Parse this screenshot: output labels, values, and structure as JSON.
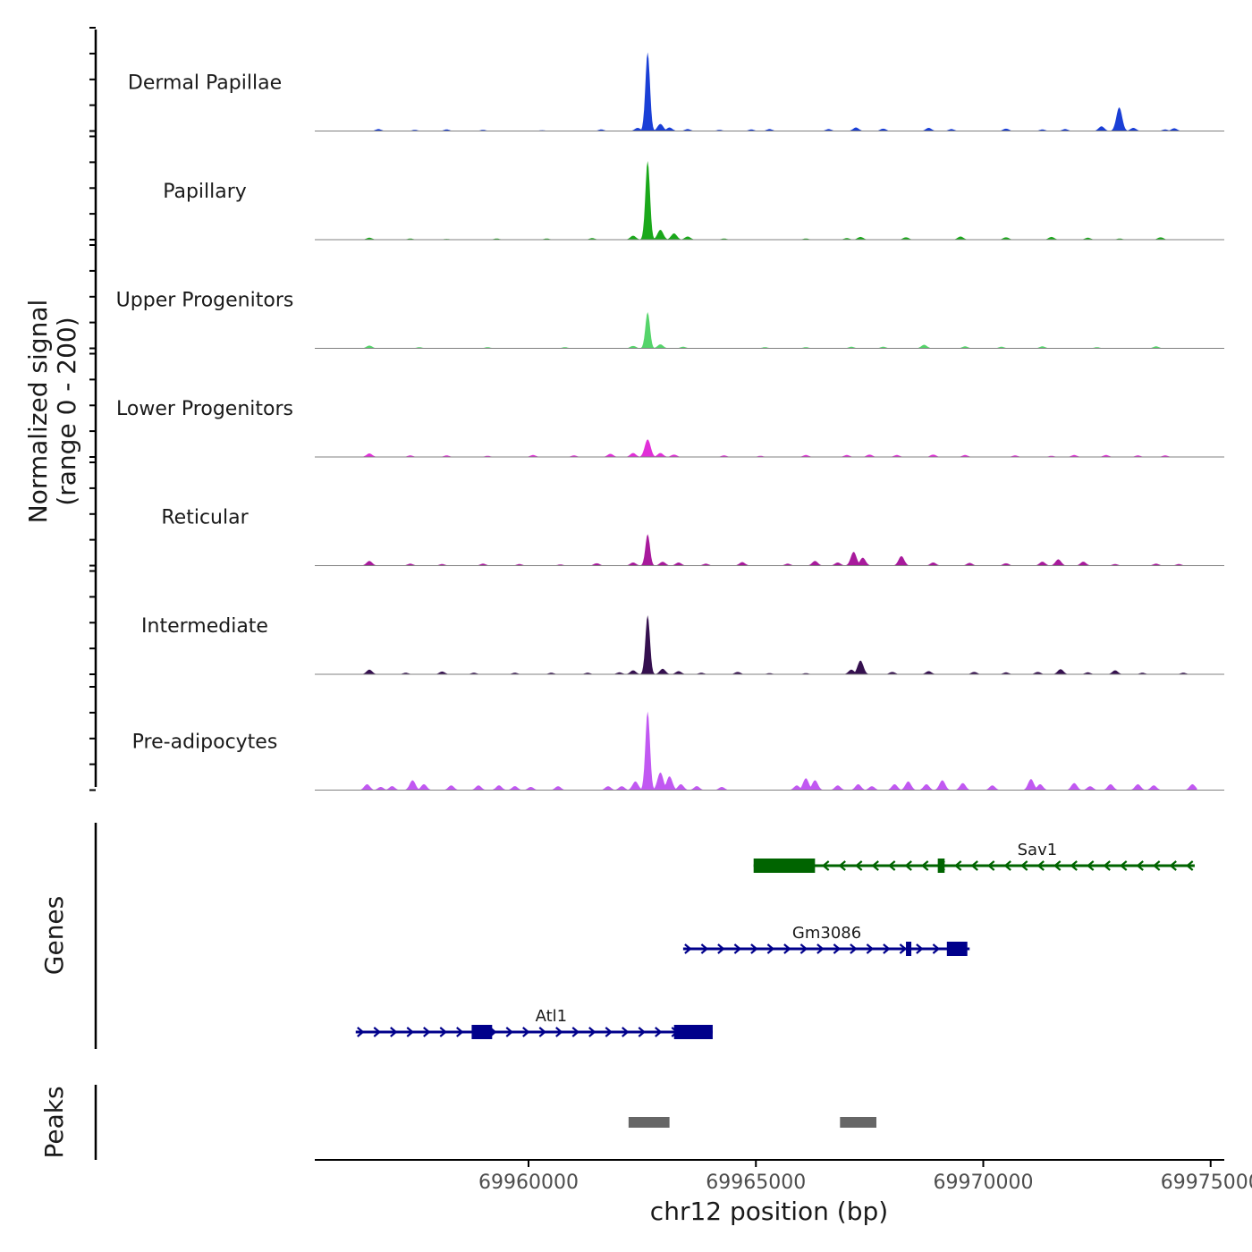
{
  "chart_data": {
    "type": "area",
    "title": "",
    "ylabel_line1": "Normalized signal",
    "ylabel_line2": "(range 0 - 200)",
    "xlabel": "chr12 position (bp)",
    "xlim": [
      69955300,
      69975300
    ],
    "ylim": [
      0,
      200
    ],
    "x_ticks": [
      69960000,
      69965000,
      69970000,
      69975000
    ],
    "x_tick_labels": [
      "69960000",
      "69965000",
      "69970000",
      "69975000"
    ],
    "tracks": [
      {
        "name": "Dermal Papillae",
        "color": "#1a3fd6",
        "peaks": [
          [
            69956700,
            5
          ],
          [
            69957500,
            3
          ],
          [
            69958200,
            4
          ],
          [
            69959000,
            3
          ],
          [
            69960300,
            2
          ],
          [
            69961600,
            4
          ],
          [
            69962400,
            8
          ],
          [
            69962620,
            200
          ],
          [
            69962900,
            18
          ],
          [
            69963100,
            9
          ],
          [
            69963500,
            5
          ],
          [
            69964200,
            3
          ],
          [
            69964900,
            4
          ],
          [
            69965300,
            5
          ],
          [
            69966600,
            5
          ],
          [
            69967200,
            9
          ],
          [
            69967800,
            6
          ],
          [
            69968800,
            8
          ],
          [
            69969300,
            5
          ],
          [
            69970500,
            6
          ],
          [
            69971300,
            4
          ],
          [
            69971800,
            5
          ],
          [
            69972600,
            12
          ],
          [
            69972990,
            60
          ],
          [
            69973300,
            8
          ],
          [
            69974000,
            4
          ],
          [
            69974200,
            7
          ]
        ]
      },
      {
        "name": "Papillary",
        "color": "#1aa81a",
        "peaks": [
          [
            69956500,
            5
          ],
          [
            69957400,
            3
          ],
          [
            69958200,
            2
          ],
          [
            69959300,
            3
          ],
          [
            69960400,
            3
          ],
          [
            69961400,
            4
          ],
          [
            69962300,
            10
          ],
          [
            69962620,
            200
          ],
          [
            69962900,
            25
          ],
          [
            69963200,
            16
          ],
          [
            69963500,
            8
          ],
          [
            69964300,
            3
          ],
          [
            69966100,
            3
          ],
          [
            69967000,
            4
          ],
          [
            69967300,
            7
          ],
          [
            69968300,
            6
          ],
          [
            69969500,
            8
          ],
          [
            69970500,
            6
          ],
          [
            69971500,
            7
          ],
          [
            69972300,
            5
          ],
          [
            69973000,
            3
          ],
          [
            69973900,
            6
          ]
        ]
      },
      {
        "name": "Upper Progenitors",
        "color": "#55d46a",
        "peaks": [
          [
            69956500,
            7
          ],
          [
            69957600,
            3
          ],
          [
            69959100,
            3
          ],
          [
            69960800,
            3
          ],
          [
            69962300,
            6
          ],
          [
            69962620,
            92
          ],
          [
            69962900,
            10
          ],
          [
            69963400,
            4
          ],
          [
            69965200,
            3
          ],
          [
            69966100,
            3
          ],
          [
            69967100,
            4
          ],
          [
            69967800,
            4
          ],
          [
            69968700,
            9
          ],
          [
            69969600,
            5
          ],
          [
            69970400,
            4
          ],
          [
            69971300,
            5
          ],
          [
            69972500,
            3
          ],
          [
            69973800,
            5
          ]
        ]
      },
      {
        "name": "Lower Progenitors",
        "color": "#e12fd8",
        "peaks": [
          [
            69956500,
            9
          ],
          [
            69957400,
            4
          ],
          [
            69958200,
            4
          ],
          [
            69959100,
            3
          ],
          [
            69960100,
            5
          ],
          [
            69961000,
            4
          ],
          [
            69961800,
            8
          ],
          [
            69962300,
            10
          ],
          [
            69962620,
            45
          ],
          [
            69962900,
            10
          ],
          [
            69963200,
            6
          ],
          [
            69964300,
            4
          ],
          [
            69965100,
            3
          ],
          [
            69966100,
            5
          ],
          [
            69967000,
            5
          ],
          [
            69967500,
            6
          ],
          [
            69968100,
            5
          ],
          [
            69968900,
            6
          ],
          [
            69969600,
            5
          ],
          [
            69970700,
            4
          ],
          [
            69971500,
            3
          ],
          [
            69972000,
            5
          ],
          [
            69972700,
            5
          ],
          [
            69973400,
            4
          ],
          [
            69974000,
            4
          ]
        ]
      },
      {
        "name": "Reticular",
        "color": "#a81a9c",
        "peaks": [
          [
            69956500,
            12
          ],
          [
            69957400,
            5
          ],
          [
            69958100,
            4
          ],
          [
            69959000,
            5
          ],
          [
            69959800,
            4
          ],
          [
            69960700,
            3
          ],
          [
            69961500,
            6
          ],
          [
            69962300,
            8
          ],
          [
            69962620,
            80
          ],
          [
            69962950,
            10
          ],
          [
            69963300,
            8
          ],
          [
            69963900,
            5
          ],
          [
            69964700,
            9
          ],
          [
            69965700,
            5
          ],
          [
            69966300,
            12
          ],
          [
            69966800,
            8
          ],
          [
            69967150,
            35
          ],
          [
            69967350,
            20
          ],
          [
            69968200,
            24
          ],
          [
            69968900,
            8
          ],
          [
            69969700,
            7
          ],
          [
            69970500,
            6
          ],
          [
            69971300,
            10
          ],
          [
            69971650,
            16
          ],
          [
            69972200,
            10
          ],
          [
            69972900,
            4
          ],
          [
            69973800,
            5
          ],
          [
            69974300,
            4
          ]
        ]
      },
      {
        "name": "Intermediate",
        "color": "#35104f",
        "peaks": [
          [
            69956500,
            12
          ],
          [
            69957300,
            4
          ],
          [
            69958100,
            7
          ],
          [
            69958800,
            4
          ],
          [
            69959700,
            4
          ],
          [
            69960500,
            4
          ],
          [
            69961300,
            4
          ],
          [
            69962000,
            5
          ],
          [
            69962300,
            10
          ],
          [
            69962620,
            150
          ],
          [
            69962950,
            14
          ],
          [
            69963300,
            8
          ],
          [
            69963800,
            4
          ],
          [
            69964600,
            6
          ],
          [
            69965300,
            3
          ],
          [
            69966100,
            3
          ],
          [
            69967100,
            12
          ],
          [
            69967300,
            35
          ],
          [
            69968000,
            6
          ],
          [
            69968800,
            8
          ],
          [
            69969800,
            6
          ],
          [
            69970500,
            5
          ],
          [
            69971200,
            6
          ],
          [
            69971700,
            13
          ],
          [
            69972300,
            5
          ],
          [
            69972900,
            10
          ],
          [
            69973500,
            4
          ],
          [
            69974400,
            4
          ]
        ]
      },
      {
        "name": "Pre-adipocytes",
        "color": "#c158f2",
        "peaks": [
          [
            69956450,
            15
          ],
          [
            69956750,
            8
          ],
          [
            69957000,
            10
          ],
          [
            69957450,
            25
          ],
          [
            69957700,
            15
          ],
          [
            69958300,
            12
          ],
          [
            69958900,
            12
          ],
          [
            69959350,
            12
          ],
          [
            69959700,
            10
          ],
          [
            69960050,
            8
          ],
          [
            69960650,
            10
          ],
          [
            69961750,
            10
          ],
          [
            69962050,
            10
          ],
          [
            69962350,
            22
          ],
          [
            69962620,
            200
          ],
          [
            69962900,
            45
          ],
          [
            69963100,
            35
          ],
          [
            69963350,
            15
          ],
          [
            69963700,
            10
          ],
          [
            69964250,
            8
          ],
          [
            69965900,
            12
          ],
          [
            69966100,
            30
          ],
          [
            69966300,
            25
          ],
          [
            69966800,
            12
          ],
          [
            69967250,
            15
          ],
          [
            69967550,
            10
          ],
          [
            69968050,
            15
          ],
          [
            69968350,
            22
          ],
          [
            69968750,
            15
          ],
          [
            69969100,
            25
          ],
          [
            69969550,
            18
          ],
          [
            69970200,
            12
          ],
          [
            69971050,
            28
          ],
          [
            69971250,
            15
          ],
          [
            69972000,
            18
          ],
          [
            69972350,
            10
          ],
          [
            69972800,
            15
          ],
          [
            69973400,
            15
          ],
          [
            69973750,
            12
          ],
          [
            69974600,
            15
          ]
        ]
      }
    ],
    "genes": [
      {
        "name": "Sav1",
        "strand": "-",
        "color": "#006400",
        "start": 69964950,
        "end": 69974650,
        "label_at": 69970750,
        "exons": [
          [
            69964950,
            69966300
          ],
          [
            69969000,
            69969150
          ]
        ]
      },
      {
        "name": "Gm3086",
        "strand": "+",
        "color": "#00008b",
        "start": 69963400,
        "end": 69969700,
        "label_at": 69965800,
        "exons": [
          [
            69968300,
            69968400
          ],
          [
            69969200,
            69969650
          ]
        ]
      },
      {
        "name": "Atl1",
        "strand": "+",
        "color": "#00008b",
        "start": 69956200,
        "end": 69964050,
        "label_at": 69960150,
        "exons": [
          [
            69958750,
            69959200
          ],
          [
            69963200,
            69964050
          ]
        ]
      }
    ],
    "peaks_track": {
      "name": "Peaks",
      "color": "#666666",
      "regions": [
        [
          69962200,
          69963100
        ],
        [
          69966850,
          69967650
        ]
      ]
    },
    "panel_labels": {
      "genes": "Genes",
      "peaks": "Peaks"
    }
  }
}
